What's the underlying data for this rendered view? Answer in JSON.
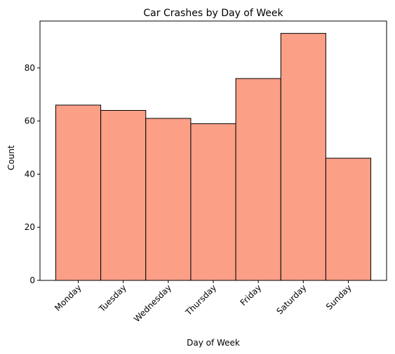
{
  "chart_data": {
    "type": "bar",
    "title": "Car Crashes by Day of Week",
    "xlabel": "Day of Week",
    "ylabel": "Count",
    "categories": [
      "Monday",
      "Tuesday",
      "Wednesday",
      "Thursday",
      "Friday",
      "Saturday",
      "Sunday"
    ],
    "values": [
      66,
      64,
      61,
      59,
      76,
      93,
      46
    ],
    "ylim": [
      0,
      97.65
    ],
    "yticks": [
      0,
      20,
      40,
      60,
      80
    ],
    "ytick_labels": [
      "0",
      "20",
      "40",
      "60",
      "80"
    ],
    "grid": false,
    "legend": "none",
    "bar_color": "#fc9f87",
    "bar_edge_color": "#000000"
  }
}
